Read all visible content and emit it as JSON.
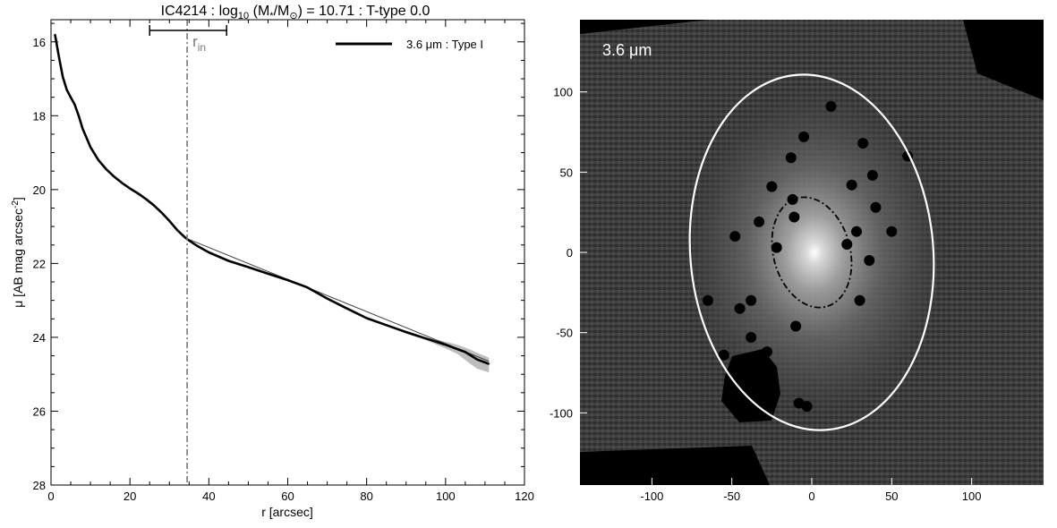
{
  "colors": {
    "profile": "#000000",
    "fit_line": "#444444",
    "uncertainty": "#bdbdbd",
    "r_in_marker": "#777777",
    "image_background": "#000000",
    "outer_ellipse": "#ffffff",
    "inner_ellipse": "#000000"
  },
  "chart_data": [
    {
      "type": "line",
      "title": {
        "name": "IC4214",
        "sep": " : ",
        "log_main": "log",
        "log_sub": "10",
        "mass_open": " (M",
        "mass_star": "*",
        "mass_mid": "/M",
        "mass_sun": "⊙",
        "mass_close": ")",
        "value": " = 10.71",
        "ttype": "T-type 0.0"
      },
      "xlabel": "r [arcsec]",
      "ylabel": {
        "main": "μ [AB mag arcsec",
        "sup": "-2",
        "close": "]"
      },
      "xlim": [
        0,
        120
      ],
      "ylim": [
        28,
        15.4
      ],
      "y_inverted": true,
      "x_ticks": [
        0,
        20,
        40,
        60,
        80,
        100,
        120
      ],
      "x_tick_labels": [
        "0",
        "20",
        "40",
        "60",
        "80",
        "100",
        "120"
      ],
      "y_ticks": [
        16,
        18,
        20,
        22,
        24,
        26,
        28
      ],
      "y_tick_labels": [
        "16",
        "18",
        "20",
        "22",
        "24",
        "26",
        "28"
      ],
      "grid": false,
      "legend_position": "top-right",
      "series": [
        {
          "name": "3.6 μm : Type I",
          "x": [
            1,
            2,
            3,
            4,
            5,
            6,
            7,
            8,
            10,
            12,
            14,
            16,
            18,
            20,
            22,
            24,
            26,
            28,
            30,
            32,
            34,
            35,
            37,
            40,
            45,
            50,
            55,
            60,
            65,
            70,
            75,
            80,
            85,
            90,
            95,
            100,
            105,
            108,
            111
          ],
          "y": [
            15.8,
            16.4,
            16.95,
            17.3,
            17.5,
            17.7,
            18.0,
            18.35,
            18.85,
            19.2,
            19.45,
            19.65,
            19.82,
            19.97,
            20.1,
            20.25,
            20.42,
            20.62,
            20.85,
            21.1,
            21.3,
            21.38,
            21.52,
            21.7,
            21.93,
            22.1,
            22.28,
            22.45,
            22.65,
            22.95,
            23.22,
            23.48,
            23.67,
            23.86,
            24.03,
            24.2,
            24.4,
            24.6,
            24.72
          ]
        },
        {
          "name": "uncertainty band",
          "x": [
            90,
            95,
            100,
            103,
            106,
            108,
            111
          ],
          "lower": [
            23.82,
            24.0,
            24.12,
            24.2,
            24.32,
            24.42,
            24.55
          ],
          "upper": [
            23.9,
            24.08,
            24.3,
            24.45,
            24.7,
            24.85,
            24.95
          ]
        },
        {
          "name": "fit",
          "x": [
            35,
            111
          ],
          "y": [
            21.35,
            24.65
          ]
        }
      ],
      "annotations": {
        "r_in_label": "r",
        "r_in_sub": "in",
        "r_in_value": 34.5,
        "r_in_range": [
          25,
          44.5
        ]
      }
    },
    {
      "type": "heatmap",
      "band_label": "3.6 μm",
      "xlim": [
        -145,
        145
      ],
      "ylim": [
        -145,
        145
      ],
      "x_ticks": [
        -100,
        -50,
        0,
        50,
        100
      ],
      "x_tick_labels": [
        "-100",
        "-50",
        "0",
        "50",
        "100"
      ],
      "y_ticks": [
        -100,
        -50,
        0,
        50,
        100
      ],
      "y_tick_labels": [
        "-100",
        "-50",
        "0",
        "50",
        "100"
      ],
      "outer_ellipse": {
        "center": [
          0,
          0
        ],
        "semi_x": 76,
        "semi_y": 111,
        "tilt_deg": -5
      },
      "inner_ellipse": {
        "center": [
          0,
          0
        ],
        "semi_x": 24,
        "semi_y": 35,
        "tilt_deg": -15
      },
      "masks": [
        [
          -33,
          19
        ],
        [
          -25,
          41
        ],
        [
          -48,
          10
        ],
        [
          -12,
          33
        ],
        [
          -38,
          -30
        ],
        [
          -22,
          3
        ],
        [
          -10,
          -46
        ],
        [
          -55,
          -64
        ],
        [
          40,
          28
        ],
        [
          25,
          42
        ],
        [
          38,
          48
        ],
        [
          60,
          60
        ],
        [
          22,
          5
        ],
        [
          36,
          -5
        ],
        [
          30,
          -30
        ],
        [
          -8,
          -94
        ],
        [
          -38,
          -53
        ],
        [
          -3,
          -96
        ],
        [
          32,
          68
        ],
        [
          -65,
          -30
        ],
        [
          -28,
          -62
        ],
        [
          -11,
          22
        ],
        [
          50,
          13
        ],
        [
          -45,
          -35
        ],
        [
          12,
          91
        ],
        [
          -5,
          72
        ],
        [
          -13,
          59
        ],
        [
          28,
          13
        ]
      ]
    }
  ]
}
